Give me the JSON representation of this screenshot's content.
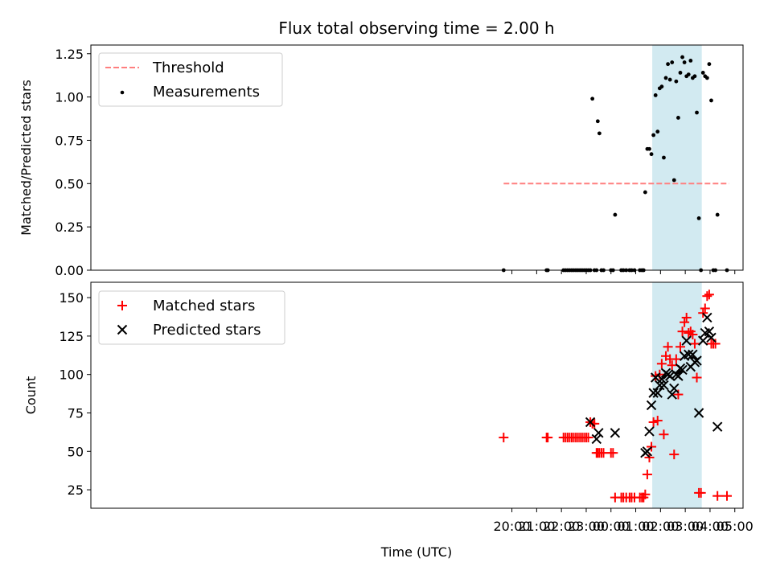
{
  "figure": {
    "title": "Flux total observing time = 2.00 h",
    "xlabel": "Time (UTC)",
    "time_ticks": [
      "20:00",
      "21:00",
      "22:00",
      "23:00",
      "00:00",
      "01:00",
      "02:00",
      "03:00",
      "04:00",
      "05:00"
    ],
    "highlight_span": {
      "from": "01:40",
      "to": "03:40",
      "color": "#add8e6"
    }
  },
  "chart_data": [
    {
      "type": "scatter",
      "ylabel": "Matched/Predicted stars",
      "ylim": [
        0.0,
        1.3
      ],
      "yticks": [
        "0.00",
        "0.25",
        "0.50",
        "0.75",
        "1.00",
        "1.25"
      ],
      "legend": {
        "placement": "top-left",
        "entries": [
          "Threshold",
          "Measurements"
        ]
      },
      "threshold": {
        "name": "Threshold",
        "value": 0.5,
        "from": "19:40",
        "to": "04:46",
        "color": "#ff7f7f",
        "style": "dashed"
      },
      "series": [
        {
          "name": "Measurements",
          "color": "#000000",
          "marker": "dot",
          "points": [
            [
              "19:40",
              0.0
            ],
            [
              "21:24",
              0.0
            ],
            [
              "21:27",
              0.0
            ],
            [
              "22:05",
              0.0
            ],
            [
              "22:10",
              0.0
            ],
            [
              "22:15",
              0.0
            ],
            [
              "22:20",
              0.0
            ],
            [
              "22:25",
              0.0
            ],
            [
              "22:30",
              0.0
            ],
            [
              "22:35",
              0.0
            ],
            [
              "22:40",
              0.0
            ],
            [
              "22:45",
              0.0
            ],
            [
              "22:50",
              0.0
            ],
            [
              "22:55",
              0.0
            ],
            [
              "23:00",
              0.0
            ],
            [
              "23:05",
              0.0
            ],
            [
              "23:10",
              0.0
            ],
            [
              "23:15",
              0.99
            ],
            [
              "23:20",
              0.0
            ],
            [
              "23:25",
              0.0
            ],
            [
              "23:28",
              0.86
            ],
            [
              "23:32",
              0.79
            ],
            [
              "23:37",
              0.0
            ],
            [
              "23:42",
              0.0
            ],
            [
              "00:00",
              0.0
            ],
            [
              "00:05",
              0.0
            ],
            [
              "00:10",
              0.32
            ],
            [
              "00:25",
              0.0
            ],
            [
              "00:30",
              0.0
            ],
            [
              "00:37",
              0.0
            ],
            [
              "00:45",
              0.0
            ],
            [
              "00:50",
              0.0
            ],
            [
              "00:57",
              0.0
            ],
            [
              "01:10",
              0.0
            ],
            [
              "01:15",
              0.0
            ],
            [
              "01:19",
              0.0
            ],
            [
              "01:23",
              0.45
            ],
            [
              "01:28",
              0.7
            ],
            [
              "01:33",
              0.7
            ],
            [
              "01:38",
              0.67
            ],
            [
              "01:43",
              0.78
            ],
            [
              "01:48",
              1.01
            ],
            [
              "01:53",
              0.8
            ],
            [
              "01:58",
              1.05
            ],
            [
              "02:03",
              1.06
            ],
            [
              "02:08",
              0.65
            ],
            [
              "02:13",
              1.11
            ],
            [
              "02:18",
              1.19
            ],
            [
              "02:23",
              1.1
            ],
            [
              "02:28",
              1.2
            ],
            [
              "02:33",
              0.52
            ],
            [
              "02:38",
              1.09
            ],
            [
              "02:43",
              0.88
            ],
            [
              "02:48",
              1.14
            ],
            [
              "02:53",
              1.23
            ],
            [
              "02:58",
              1.2
            ],
            [
              "03:03",
              1.12
            ],
            [
              "03:08",
              1.13
            ],
            [
              "03:13",
              1.21
            ],
            [
              "03:18",
              1.11
            ],
            [
              "03:23",
              1.12
            ],
            [
              "03:28",
              0.91
            ],
            [
              "03:33",
              0.3
            ],
            [
              "03:38",
              0.0
            ],
            [
              "03:43",
              1.14
            ],
            [
              "03:48",
              1.12
            ],
            [
              "03:53",
              1.11
            ],
            [
              "03:58",
              1.19
            ],
            [
              "04:03",
              0.98
            ],
            [
              "04:08",
              0.0
            ],
            [
              "04:13",
              0.0
            ],
            [
              "04:18",
              0.32
            ],
            [
              "04:41",
              0.0
            ]
          ]
        }
      ]
    },
    {
      "type": "scatter",
      "ylabel": "Count",
      "ylim": [
        13,
        160
      ],
      "yticks": [
        "25",
        "50",
        "75",
        "100",
        "125",
        "150"
      ],
      "legend": {
        "placement": "top-left",
        "entries": [
          "Matched stars",
          "Predicted stars"
        ]
      },
      "series": [
        {
          "name": "Matched stars",
          "color": "#ff0000",
          "marker": "plus",
          "points": [
            [
              "19:40",
              59
            ],
            [
              "21:24",
              59
            ],
            [
              "21:27",
              59
            ],
            [
              "22:05",
              59
            ],
            [
              "22:10",
              59
            ],
            [
              "22:15",
              59
            ],
            [
              "22:20",
              59
            ],
            [
              "22:25",
              59
            ],
            [
              "22:30",
              59
            ],
            [
              "22:35",
              59
            ],
            [
              "22:40",
              59
            ],
            [
              "22:45",
              59
            ],
            [
              "22:50",
              59
            ],
            [
              "22:55",
              59
            ],
            [
              "23:00",
              59
            ],
            [
              "23:05",
              59
            ],
            [
              "23:10",
              69
            ],
            [
              "23:15",
              68
            ],
            [
              "23:20",
              68
            ],
            [
              "23:25",
              49
            ],
            [
              "23:28",
              49
            ],
            [
              "23:32",
              49
            ],
            [
              "23:37",
              49
            ],
            [
              "23:42",
              49
            ],
            [
              "00:00",
              49
            ],
            [
              "00:05",
              49
            ],
            [
              "00:10",
              20
            ],
            [
              "00:25",
              20
            ],
            [
              "00:30",
              20
            ],
            [
              "00:37",
              20
            ],
            [
              "00:45",
              20
            ],
            [
              "00:50",
              20
            ],
            [
              "00:57",
              20
            ],
            [
              "01:10",
              20
            ],
            [
              "01:15",
              20
            ],
            [
              "01:19",
              20
            ],
            [
              "01:23",
              22
            ],
            [
              "01:28",
              35
            ],
            [
              "01:33",
              46
            ],
            [
              "01:38",
              53
            ],
            [
              "01:43",
              69
            ],
            [
              "01:48",
              99
            ],
            [
              "01:53",
              70
            ],
            [
              "01:58",
              100
            ],
            [
              "02:03",
              107
            ],
            [
              "02:08",
              61
            ],
            [
              "02:13",
              112
            ],
            [
              "02:18",
              118
            ],
            [
              "02:23",
              110
            ],
            [
              "02:28",
              106
            ],
            [
              "02:33",
              48
            ],
            [
              "02:38",
              110
            ],
            [
              "02:43",
              87
            ],
            [
              "02:48",
              118
            ],
            [
              "02:53",
              128
            ],
            [
              "02:58",
              134
            ],
            [
              "03:03",
              137
            ],
            [
              "03:08",
              127
            ],
            [
              "03:13",
              128
            ],
            [
              "03:18",
              126
            ],
            [
              "03:23",
              120
            ],
            [
              "03:28",
              98
            ],
            [
              "03:33",
              23
            ],
            [
              "03:38",
              23
            ],
            [
              "03:43",
              140
            ],
            [
              "03:48",
              143
            ],
            [
              "03:53",
              151
            ],
            [
              "03:58",
              152
            ],
            [
              "04:03",
              120
            ],
            [
              "04:08",
              120
            ],
            [
              "04:13",
              120
            ],
            [
              "04:18",
              21
            ],
            [
              "04:41",
              21
            ]
          ]
        },
        {
          "name": "Predicted stars",
          "color": "#000000",
          "marker": "x",
          "points": [
            [
              "23:10",
              69
            ],
            [
              "23:25",
              58
            ],
            [
              "23:30",
              62
            ],
            [
              "00:10",
              62
            ],
            [
              "01:23",
              49
            ],
            [
              "01:28",
              50
            ],
            [
              "01:33",
              63
            ],
            [
              "01:38",
              80
            ],
            [
              "01:43",
              88
            ],
            [
              "01:48",
              98
            ],
            [
              "01:53",
              88
            ],
            [
              "01:58",
              93
            ],
            [
              "02:03",
              97
            ],
            [
              "02:08",
              93
            ],
            [
              "02:13",
              101
            ],
            [
              "02:18",
              100
            ],
            [
              "02:23",
              99
            ],
            [
              "02:28",
              87
            ],
            [
              "02:33",
              91
            ],
            [
              "02:38",
              100
            ],
            [
              "02:43",
              99
            ],
            [
              "02:48",
              104
            ],
            [
              "02:53",
              103
            ],
            [
              "02:58",
              112
            ],
            [
              "03:03",
              122
            ],
            [
              "03:08",
              113
            ],
            [
              "03:13",
              105
            ],
            [
              "03:18",
              113
            ],
            [
              "03:23",
              108
            ],
            [
              "03:28",
              109
            ],
            [
              "03:33",
              75
            ],
            [
              "03:43",
              122
            ],
            [
              "03:48",
              127
            ],
            [
              "03:53",
              137
            ],
            [
              "03:58",
              128
            ],
            [
              "04:03",
              124
            ],
            [
              "04:18",
              66
            ]
          ]
        }
      ]
    }
  ]
}
